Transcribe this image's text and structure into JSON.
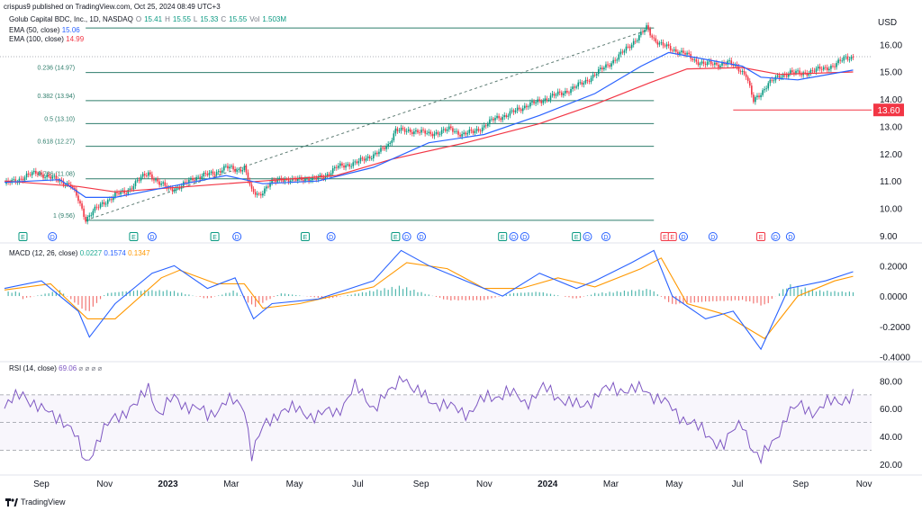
{
  "header": {
    "published": "crispus9 published on TradingView.com, Oct 25, 2024 08:49 UTC+3",
    "symbol": "Golub Capital BDC, Inc., 1D, NASDAQ",
    "ohlc": {
      "o_label": "O",
      "o": "15.41",
      "h_label": "H",
      "h": "15.55",
      "l_label": "L",
      "l": "15.33",
      "c_label": "C",
      "c": "15.55",
      "vol_label": "Vol",
      "vol": "1.503M"
    },
    "ema50": {
      "label": "EMA (50, close)",
      "value": "15.06",
      "color": "#2962ff"
    },
    "ema100": {
      "label": "EMA (100, close)",
      "value": "14.99",
      "color": "#f23645"
    },
    "currency": "USD"
  },
  "colors": {
    "up": "#089981",
    "down": "#f23645",
    "ema50": "#2962ff",
    "ema100": "#f23645",
    "fib": "#2e7d6b",
    "macd": "#2962ff",
    "signal": "#ff9800",
    "rsi": "#7e57c2",
    "grid": "#f0f3fa",
    "text": "#131722"
  },
  "chart_data": [
    {
      "type": "line",
      "title": "Golub Capital BDC, Inc., 1D, NASDAQ",
      "y_ticks": [
        "16.00",
        "15.00",
        "14.00",
        "13.00",
        "12.00",
        "11.00",
        "10.00",
        "9.00"
      ],
      "ylim": [
        8.8,
        16.8
      ],
      "x_ticks": [
        "Sep",
        "Nov",
        "2023",
        "Mar",
        "May",
        "Jul",
        "Sep",
        "Nov",
        "2024",
        "Mar",
        "May",
        "Jul",
        "Sep",
        "Nov"
      ],
      "price_series": [
        [
          0,
          10.9
        ],
        [
          6,
          11.0
        ],
        [
          12,
          11.2
        ],
        [
          18,
          11.3
        ],
        [
          24,
          11.15
        ],
        [
          30,
          11.0
        ],
        [
          36,
          10.85
        ],
        [
          40,
          10.3
        ],
        [
          44,
          9.6
        ],
        [
          48,
          9.9
        ],
        [
          54,
          10.2
        ],
        [
          60,
          10.5
        ],
        [
          66,
          10.6
        ],
        [
          72,
          11.0
        ],
        [
          78,
          11.3
        ],
        [
          84,
          10.9
        ],
        [
          90,
          10.7
        ],
        [
          96,
          10.8
        ],
        [
          102,
          11.1
        ],
        [
          108,
          11.2
        ],
        [
          114,
          11.3
        ],
        [
          120,
          11.5
        ],
        [
          126,
          11.4
        ],
        [
          130,
          11.5
        ],
        [
          134,
          10.6
        ],
        [
          138,
          10.5
        ],
        [
          144,
          10.9
        ],
        [
          150,
          11.1
        ],
        [
          156,
          11.0
        ],
        [
          162,
          11.1
        ],
        [
          168,
          11.05
        ],
        [
          174,
          11.2
        ],
        [
          180,
          11.5
        ],
        [
          186,
          11.6
        ],
        [
          192,
          11.7
        ],
        [
          198,
          11.9
        ],
        [
          204,
          12.1
        ],
        [
          208,
          12.3
        ],
        [
          212,
          12.9
        ],
        [
          218,
          12.8
        ],
        [
          224,
          12.85
        ],
        [
          230,
          12.7
        ],
        [
          236,
          12.8
        ],
        [
          242,
          12.9
        ],
        [
          248,
          12.7
        ],
        [
          254,
          12.8
        ],
        [
          260,
          13.0
        ],
        [
          266,
          13.3
        ],
        [
          272,
          13.4
        ],
        [
          278,
          13.6
        ],
        [
          284,
          13.8
        ],
        [
          290,
          13.9
        ],
        [
          296,
          14.1
        ],
        [
          302,
          14.2
        ],
        [
          308,
          14.4
        ],
        [
          314,
          14.6
        ],
        [
          320,
          14.9
        ],
        [
          326,
          15.2
        ],
        [
          332,
          15.5
        ],
        [
          338,
          15.9
        ],
        [
          344,
          16.3
        ],
        [
          348,
          16.6
        ],
        [
          352,
          16.2
        ],
        [
          356,
          16.0
        ],
        [
          362,
          15.8
        ],
        [
          368,
          15.7
        ],
        [
          374,
          15.4
        ],
        [
          380,
          15.3
        ],
        [
          386,
          15.25
        ],
        [
          392,
          15.35
        ],
        [
          398,
          15.1
        ],
        [
          402,
          14.9
        ],
        [
          406,
          13.9
        ],
        [
          410,
          14.2
        ],
        [
          414,
          14.6
        ],
        [
          420,
          14.8
        ],
        [
          426,
          15.0
        ],
        [
          432,
          14.9
        ],
        [
          438,
          15.05
        ],
        [
          444,
          15.1
        ],
        [
          450,
          15.25
        ],
        [
          456,
          15.5
        ],
        [
          460,
          15.55
        ]
      ],
      "ema50_series": [
        [
          0,
          10.95
        ],
        [
          30,
          11.05
        ],
        [
          44,
          10.4
        ],
        [
          60,
          10.4
        ],
        [
          90,
          10.8
        ],
        [
          120,
          11.2
        ],
        [
          140,
          10.9
        ],
        [
          170,
          11.0
        ],
        [
          200,
          11.5
        ],
        [
          230,
          12.4
        ],
        [
          260,
          12.7
        ],
        [
          290,
          13.4
        ],
        [
          320,
          14.2
        ],
        [
          345,
          15.2
        ],
        [
          360,
          15.7
        ],
        [
          380,
          15.45
        ],
        [
          400,
          15.2
        ],
        [
          410,
          14.8
        ],
        [
          430,
          14.7
        ],
        [
          460,
          15.06
        ]
      ],
      "ema100_series": [
        [
          0,
          11.0
        ],
        [
          40,
          10.8
        ],
        [
          60,
          10.6
        ],
        [
          100,
          10.8
        ],
        [
          140,
          11.0
        ],
        [
          180,
          11.2
        ],
        [
          210,
          11.8
        ],
        [
          250,
          12.4
        ],
        [
          290,
          13.1
        ],
        [
          320,
          13.8
        ],
        [
          350,
          14.6
        ],
        [
          370,
          15.1
        ],
        [
          400,
          15.15
        ],
        [
          420,
          14.9
        ],
        [
          460,
          14.99
        ]
      ],
      "fib_levels": [
        {
          "ratio": "0.236",
          "price": 14.97,
          "label": "0.236 (14.97)"
        },
        {
          "ratio": "0.382",
          "price": 13.94,
          "label": "0.382 (13.94)"
        },
        {
          "ratio": "0.5",
          "price": 13.1,
          "label": "0.5 (13.10)"
        },
        {
          "ratio": "0.618",
          "price": 12.27,
          "label": "0.618 (12.27)"
        },
        {
          "ratio": "0.786",
          "price": 11.08,
          "label": "0.786 (11.08)"
        },
        {
          "ratio": "1",
          "price": 9.56,
          "label": "1 (9.56)"
        }
      ],
      "fib_top": 16.6,
      "support_level": {
        "price": 13.6,
        "label": "13.60"
      },
      "last_price": 15.55,
      "event_markers": [
        {
          "x": 10,
          "kind": "E"
        },
        {
          "x": 26,
          "kind": "D"
        },
        {
          "x": 70,
          "kind": "E"
        },
        {
          "x": 80,
          "kind": "D"
        },
        {
          "x": 114,
          "kind": "E"
        },
        {
          "x": 126,
          "kind": "D"
        },
        {
          "x": 163,
          "kind": "E"
        },
        {
          "x": 177,
          "kind": "D"
        },
        {
          "x": 212,
          "kind": "E"
        },
        {
          "x": 218,
          "kind": "D"
        },
        {
          "x": 226,
          "kind": "D"
        },
        {
          "x": 270,
          "kind": "E"
        },
        {
          "x": 276,
          "kind": "D"
        },
        {
          "x": 282,
          "kind": "D"
        },
        {
          "x": 310,
          "kind": "E"
        },
        {
          "x": 316,
          "kind": "D"
        },
        {
          "x": 326,
          "kind": "D"
        },
        {
          "x": 358,
          "kind": "E",
          "color": "red"
        },
        {
          "x": 362,
          "kind": "E",
          "color": "red"
        },
        {
          "x": 368,
          "kind": "D"
        },
        {
          "x": 384,
          "kind": "D"
        },
        {
          "x": 410,
          "kind": "E",
          "color": "red"
        },
        {
          "x": 418,
          "kind": "D"
        },
        {
          "x": 426,
          "kind": "D"
        }
      ]
    },
    {
      "type": "line",
      "title": "MACD (12, 26, close)",
      "values": {
        "hist": "0.0227",
        "macd": "0.1574",
        "signal": "0.1347"
      },
      "y_ticks": [
        "0.2000",
        "0.0000",
        "-0.2000",
        "-0.4000"
      ],
      "ylim": [
        -0.42,
        0.32
      ],
      "macd_series": [
        [
          0,
          0.05
        ],
        [
          20,
          0.1
        ],
        [
          40,
          -0.1
        ],
        [
          46,
          -0.27
        ],
        [
          60,
          -0.05
        ],
        [
          80,
          0.15
        ],
        [
          92,
          0.2
        ],
        [
          110,
          0.05
        ],
        [
          125,
          0.12
        ],
        [
          135,
          -0.15
        ],
        [
          145,
          -0.05
        ],
        [
          170,
          -0.02
        ],
        [
          200,
          0.1
        ],
        [
          215,
          0.3
        ],
        [
          230,
          0.2
        ],
        [
          250,
          0.1
        ],
        [
          270,
          0.0
        ],
        [
          290,
          0.15
        ],
        [
          310,
          0.05
        ],
        [
          320,
          0.1
        ],
        [
          340,
          0.22
        ],
        [
          352,
          0.3
        ],
        [
          362,
          0.0
        ],
        [
          380,
          -0.15
        ],
        [
          395,
          -0.1
        ],
        [
          410,
          -0.35
        ],
        [
          425,
          0.05
        ],
        [
          445,
          0.1
        ],
        [
          460,
          0.16
        ]
      ],
      "signal_series": [
        [
          0,
          0.04
        ],
        [
          25,
          0.08
        ],
        [
          45,
          -0.15
        ],
        [
          60,
          -0.15
        ],
        [
          85,
          0.12
        ],
        [
          95,
          0.17
        ],
        [
          115,
          0.08
        ],
        [
          130,
          0.08
        ],
        [
          140,
          -0.08
        ],
        [
          160,
          -0.05
        ],
        [
          200,
          0.06
        ],
        [
          218,
          0.22
        ],
        [
          240,
          0.18
        ],
        [
          260,
          0.05
        ],
        [
          280,
          0.05
        ],
        [
          300,
          0.12
        ],
        [
          320,
          0.06
        ],
        [
          345,
          0.18
        ],
        [
          356,
          0.25
        ],
        [
          370,
          -0.05
        ],
        [
          390,
          -0.12
        ],
        [
          412,
          -0.28
        ],
        [
          430,
          0.0
        ],
        [
          450,
          0.1
        ],
        [
          460,
          0.13
        ]
      ],
      "hist_series": [
        [
          10,
          -0.02
        ],
        [
          30,
          0.04
        ],
        [
          45,
          -0.12
        ],
        [
          55,
          0.02
        ],
        [
          70,
          0.04
        ],
        [
          90,
          0.04
        ],
        [
          110,
          -0.02
        ],
        [
          125,
          0.04
        ],
        [
          135,
          -0.08
        ],
        [
          150,
          0.02
        ],
        [
          175,
          -0.02
        ],
        [
          200,
          0.04
        ],
        [
          215,
          0.07
        ],
        [
          240,
          -0.03
        ],
        [
          260,
          -0.03
        ],
        [
          275,
          0.02
        ],
        [
          290,
          0.03
        ],
        [
          310,
          -0.02
        ],
        [
          320,
          0.02
        ],
        [
          340,
          0.04
        ],
        [
          350,
          0.05
        ],
        [
          362,
          -0.06
        ],
        [
          380,
          -0.04
        ],
        [
          400,
          -0.03
        ],
        [
          412,
          -0.07
        ],
        [
          425,
          0.08
        ],
        [
          440,
          0.04
        ],
        [
          455,
          0.03
        ]
      ]
    },
    {
      "type": "line",
      "title": "RSI (14, close)",
      "values": {
        "rsi": "69.06"
      },
      "y_ticks": [
        "80.00",
        "60.00",
        "40.00",
        "20.00"
      ],
      "ylim": [
        14,
        92
      ],
      "bands": [
        70,
        50,
        30
      ],
      "rsi_series": [
        [
          0,
          60
        ],
        [
          10,
          72
        ],
        [
          20,
          58
        ],
        [
          30,
          55
        ],
        [
          38,
          40
        ],
        [
          44,
          22
        ],
        [
          50,
          35
        ],
        [
          60,
          55
        ],
        [
          72,
          62
        ],
        [
          78,
          77
        ],
        [
          84,
          55
        ],
        [
          92,
          68
        ],
        [
          100,
          62
        ],
        [
          110,
          55
        ],
        [
          120,
          65
        ],
        [
          130,
          62
        ],
        [
          134,
          28
        ],
        [
          140,
          45
        ],
        [
          150,
          60
        ],
        [
          160,
          58
        ],
        [
          170,
          55
        ],
        [
          180,
          58
        ],
        [
          190,
          75
        ],
        [
          200,
          62
        ],
        [
          210,
          72
        ],
        [
          216,
          86
        ],
        [
          222,
          72
        ],
        [
          232,
          66
        ],
        [
          242,
          60
        ],
        [
          252,
          58
        ],
        [
          262,
          68
        ],
        [
          272,
          72
        ],
        [
          282,
          65
        ],
        [
          292,
          74
        ],
        [
          302,
          68
        ],
        [
          312,
          60
        ],
        [
          322,
          72
        ],
        [
          336,
          75
        ],
        [
          348,
          72
        ],
        [
          356,
          68
        ],
        [
          364,
          55
        ],
        [
          372,
          52
        ],
        [
          380,
          40
        ],
        [
          390,
          35
        ],
        [
          400,
          50
        ],
        [
          406,
          30
        ],
        [
          410,
          22
        ],
        [
          416,
          35
        ],
        [
          424,
          55
        ],
        [
          432,
          62
        ],
        [
          440,
          58
        ],
        [
          450,
          66
        ],
        [
          460,
          69
        ]
      ]
    }
  ],
  "axis_labels": {
    "months": [
      "Sep",
      "Nov",
      "2023",
      "Mar",
      "May",
      "Jul",
      "Sep",
      "Nov",
      "2024",
      "Mar",
      "May",
      "Jul",
      "Sep",
      "Nov"
    ]
  },
  "footer": {
    "brand": "TradingView"
  }
}
